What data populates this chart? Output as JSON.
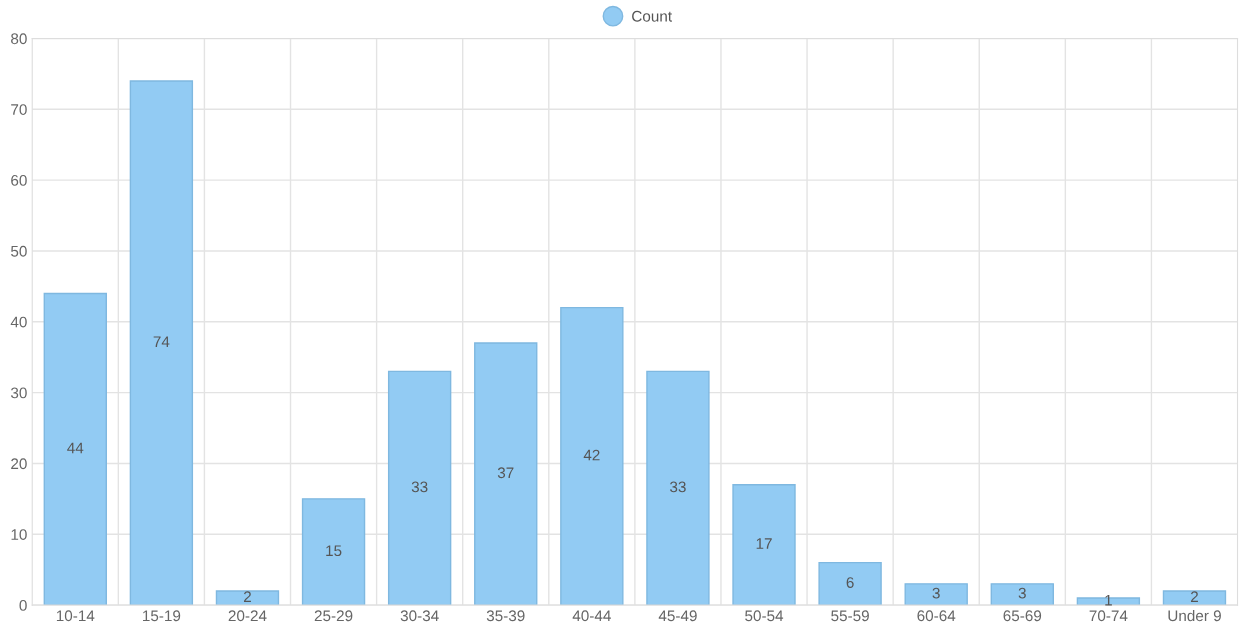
{
  "chart_data": {
    "type": "bar",
    "categories": [
      "10-14",
      "15-19",
      "20-24",
      "25-29",
      "30-34",
      "35-39",
      "40-44",
      "45-49",
      "50-54",
      "55-59",
      "60-64",
      "65-69",
      "70-74",
      "Under 9"
    ],
    "series": [
      {
        "name": "Count",
        "color": "#92cbf3",
        "values": [
          44,
          74,
          2,
          15,
          33,
          37,
          42,
          33,
          17,
          6,
          3,
          3,
          1,
          2
        ]
      }
    ],
    "ylim": [
      0,
      80
    ],
    "yticks": [
      0,
      10,
      20,
      30,
      40,
      50,
      60,
      70,
      80
    ],
    "grid": true,
    "legend": "top",
    "data_labels": true
  }
}
